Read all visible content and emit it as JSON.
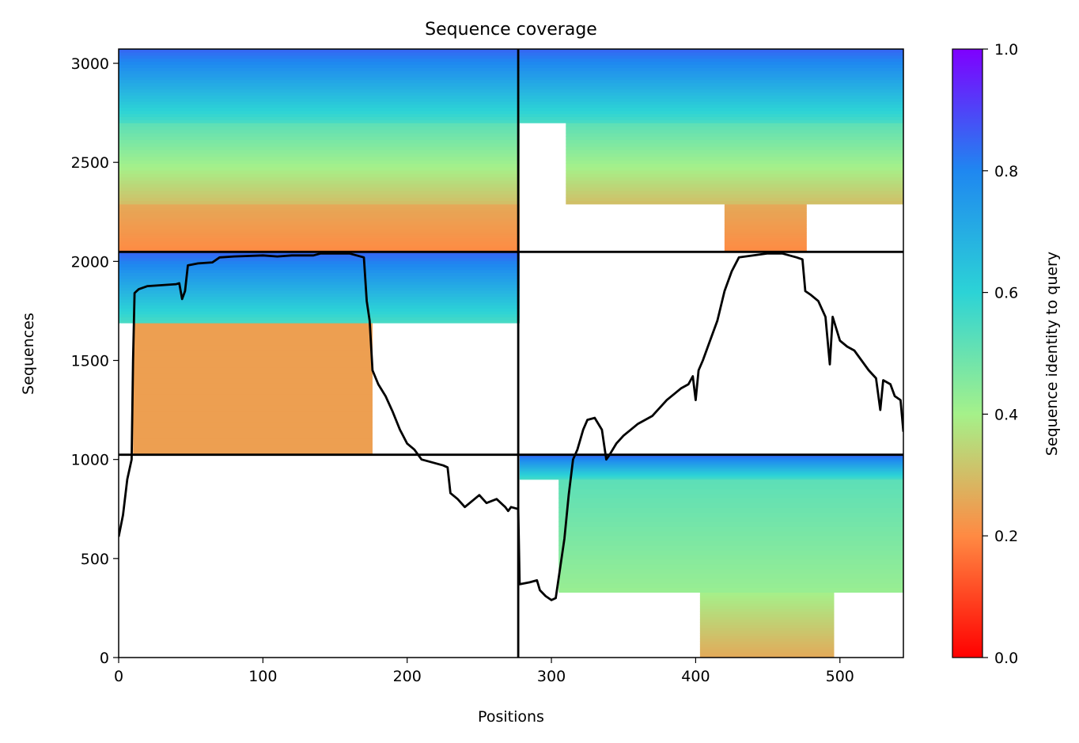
{
  "chart_data": {
    "type": "heatmap",
    "title": "Sequence coverage",
    "xlabel": "Positions",
    "ylabel": "Sequences",
    "xlim": [
      0,
      544
    ],
    "ylim": [
      0,
      3072
    ],
    "x_ticks": [
      0,
      100,
      200,
      300,
      400,
      500
    ],
    "y_ticks": [
      0,
      500,
      1000,
      1500,
      2000,
      2500,
      3000
    ],
    "chain_boundary_x": 277,
    "block_boundaries_y": [
      1024,
      2048
    ],
    "blocks": [
      {
        "rows": [
          2048,
          3072
        ],
        "description": "left half coverage block",
        "segments": [
          {
            "x": [
              0,
              278
            ],
            "rows": [
              2048,
              2290
            ],
            "identity_from": 0.2,
            "identity_to": 0.26
          },
          {
            "x": [
              0,
              278
            ],
            "rows": [
              2290,
              2700
            ],
            "identity_from": 0.3,
            "identity_to": 0.52
          },
          {
            "x": [
              0,
              278
            ],
            "rows": [
              2700,
              3072
            ],
            "identity_from": 0.55,
            "identity_to": 0.85
          }
        ]
      },
      {
        "rows": [
          2048,
          3072
        ],
        "description": "right half coverage block",
        "segments": [
          {
            "x": [
              420,
              477
            ],
            "rows": [
              2048,
              2290
            ],
            "identity_from": 0.2,
            "identity_to": 0.26
          },
          {
            "x": [
              310,
              544
            ],
            "rows": [
              2290,
              2700
            ],
            "identity_from": 0.3,
            "identity_to": 0.52
          },
          {
            "x": [
              278,
              544
            ],
            "rows": [
              2700,
              3072
            ],
            "identity_from": 0.55,
            "identity_to": 0.85
          }
        ]
      },
      {
        "rows": [
          1024,
          2048
        ],
        "description": "left half, middle block",
        "segments": [
          {
            "x": [
              10,
              176
            ],
            "rows": [
              1024,
              1690
            ],
            "identity_from": 0.24,
            "identity_to": 0.24
          },
          {
            "x": [
              0,
              278
            ],
            "rows": [
              1690,
              2048
            ],
            "identity_from": 0.55,
            "identity_to": 0.85
          }
        ]
      },
      {
        "rows": [
          0,
          1024
        ],
        "description": "right half, bottom block",
        "segments": [
          {
            "x": [
              403,
              496
            ],
            "rows": [
              0,
              330
            ],
            "identity_from": 0.26,
            "identity_to": 0.4
          },
          {
            "x": [
              305,
              544
            ],
            "rows": [
              330,
              900
            ],
            "identity_from": 0.42,
            "identity_to": 0.52
          },
          {
            "x": [
              278,
              544
            ],
            "rows": [
              900,
              1024
            ],
            "identity_from": 0.55,
            "identity_to": 0.85
          }
        ]
      }
    ],
    "coverage_line": {
      "color": "#000000",
      "points": [
        [
          0,
          610
        ],
        [
          3,
          720
        ],
        [
          6,
          900
        ],
        [
          9,
          1000
        ],
        [
          10,
          1500
        ],
        [
          11,
          1840
        ],
        [
          14,
          1860
        ],
        [
          20,
          1875
        ],
        [
          30,
          1880
        ],
        [
          40,
          1885
        ],
        [
          42,
          1890
        ],
        [
          44,
          1810
        ],
        [
          46,
          1850
        ],
        [
          48,
          1980
        ],
        [
          55,
          1990
        ],
        [
          65,
          1995
        ],
        [
          70,
          2020
        ],
        [
          80,
          2025
        ],
        [
          100,
          2030
        ],
        [
          110,
          2025
        ],
        [
          120,
          2030
        ],
        [
          135,
          2030
        ],
        [
          140,
          2040
        ],
        [
          160,
          2040
        ],
        [
          170,
          2020
        ],
        [
          172,
          1800
        ],
        [
          174,
          1700
        ],
        [
          176,
          1450
        ],
        [
          180,
          1380
        ],
        [
          185,
          1320
        ],
        [
          190,
          1240
        ],
        [
          195,
          1150
        ],
        [
          200,
          1080
        ],
        [
          205,
          1050
        ],
        [
          210,
          1000
        ],
        [
          215,
          990
        ],
        [
          225,
          970
        ],
        [
          228,
          960
        ],
        [
          230,
          830
        ],
        [
          235,
          800
        ],
        [
          240,
          760
        ],
        [
          245,
          790
        ],
        [
          250,
          820
        ],
        [
          255,
          780
        ],
        [
          262,
          800
        ],
        [
          268,
          760
        ],
        [
          270,
          740
        ],
        [
          272,
          760
        ],
        [
          277,
          750
        ],
        [
          278,
          370
        ],
        [
          285,
          380
        ],
        [
          290,
          390
        ],
        [
          292,
          340
        ],
        [
          296,
          310
        ],
        [
          300,
          290
        ],
        [
          303,
          300
        ],
        [
          306,
          450
        ],
        [
          309,
          600
        ],
        [
          312,
          820
        ],
        [
          315,
          1000
        ],
        [
          318,
          1050
        ],
        [
          322,
          1150
        ],
        [
          325,
          1200
        ],
        [
          330,
          1210
        ],
        [
          335,
          1150
        ],
        [
          338,
          1000
        ],
        [
          340,
          1020
        ],
        [
          345,
          1080
        ],
        [
          350,
          1120
        ],
        [
          355,
          1150
        ],
        [
          360,
          1180
        ],
        [
          365,
          1200
        ],
        [
          370,
          1220
        ],
        [
          375,
          1260
        ],
        [
          380,
          1300
        ],
        [
          385,
          1330
        ],
        [
          390,
          1360
        ],
        [
          395,
          1380
        ],
        [
          398,
          1420
        ],
        [
          400,
          1300
        ],
        [
          402,
          1450
        ],
        [
          405,
          1500
        ],
        [
          410,
          1600
        ],
        [
          415,
          1700
        ],
        [
          420,
          1850
        ],
        [
          425,
          1950
        ],
        [
          430,
          2020
        ],
        [
          440,
          2030
        ],
        [
          450,
          2040
        ],
        [
          460,
          2040
        ],
        [
          470,
          2020
        ],
        [
          474,
          2010
        ],
        [
          476,
          1850
        ],
        [
          480,
          1830
        ],
        [
          485,
          1800
        ],
        [
          490,
          1720
        ],
        [
          493,
          1480
        ],
        [
          495,
          1720
        ],
        [
          500,
          1600
        ],
        [
          505,
          1570
        ],
        [
          510,
          1550
        ],
        [
          515,
          1500
        ],
        [
          520,
          1450
        ],
        [
          525,
          1410
        ],
        [
          528,
          1250
        ],
        [
          530,
          1400
        ],
        [
          535,
          1380
        ],
        [
          538,
          1320
        ],
        [
          542,
          1300
        ],
        [
          544,
          1140
        ]
      ]
    },
    "colorbar": {
      "label": "Sequence identity to query",
      "range": [
        0,
        1
      ],
      "ticks": [
        "0.0",
        "0.2",
        "0.4",
        "0.6",
        "0.8",
        "1.0"
      ],
      "colormap": "rainbow_r"
    }
  }
}
